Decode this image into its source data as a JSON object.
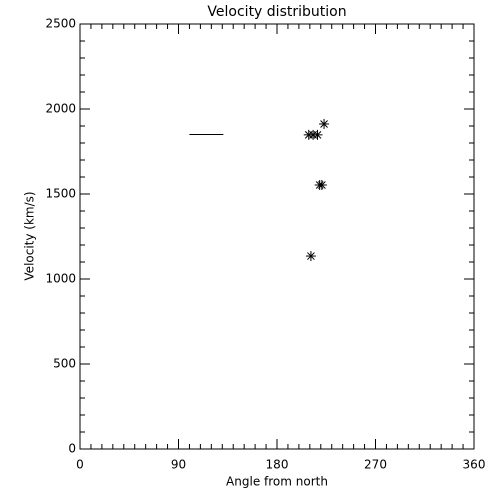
{
  "chart_data": {
    "type": "scatter",
    "title": "Velocity distribution",
    "x_label": "Angle from north",
    "y_label": "Velocity (km/s)",
    "xlim": [
      0,
      360
    ],
    "xticks": [
      0,
      90,
      180,
      270,
      360
    ],
    "xminor": 9,
    "ylim": [
      0,
      2500
    ],
    "yticks": [
      0,
      500,
      1000,
      1500,
      2000,
      2500
    ],
    "yminor": 5,
    "color": "#000000",
    "series": [
      {
        "style": "line",
        "x": [
          100,
          131
        ],
        "values": [
          1850,
          1850
        ]
      },
      {
        "style": "asterisk",
        "x": [
          209,
          213,
          217,
          223,
          219,
          221,
          211
        ],
        "values": [
          1848,
          1848,
          1848,
          1912,
          1553,
          1553,
          1135
        ]
      }
    ]
  }
}
